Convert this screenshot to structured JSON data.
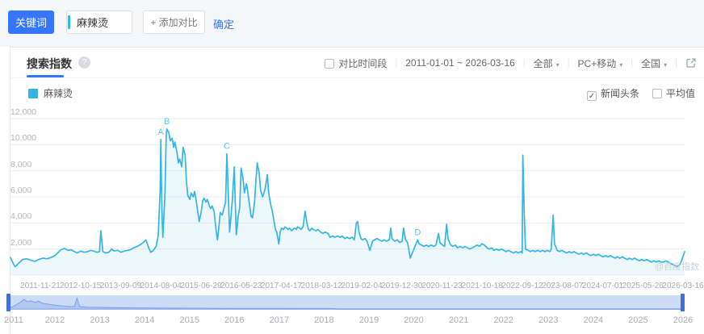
{
  "toolbar": {
    "keyword_label": "关键词",
    "keyword_value": "麻辣烫",
    "add_compare_label": "+ 添加对比",
    "confirm_label": "确定"
  },
  "header": {
    "title": "搜索指数",
    "help_glyph": "?",
    "compare_checkbox_label": "对比时间段",
    "date_range": "2011-01-01 ~ 2026-03-16",
    "filter_all": "全部",
    "filter_device": "PC+移动",
    "filter_region": "全国",
    "caret_glyph": "▾",
    "separator_glyph": "|"
  },
  "legend": {
    "series_label": "麻辣烫",
    "news_checkbox_label": "新闻头条",
    "news_checked_glyph": "✓",
    "avg_checkbox_label": "平均值"
  },
  "watermark": "@百度指数",
  "colors": {
    "accent_blue": "#3476fe",
    "series_cyan": "#35b5e6",
    "marker_cyan": "#5fc6ec",
    "grid": "#ececee",
    "brush_fill": "#ccdcf7",
    "brush_handle": "#3f6fd8",
    "brush_line": "#7d9fe6"
  },
  "chart_data": {
    "type": "line",
    "title": "麻辣烫 搜索指数",
    "series_name": "麻辣烫",
    "x_range": [
      "2011-01-01",
      "2026-03-16"
    ],
    "ylim": [
      0,
      12000
    ],
    "y_ticks": [
      2000,
      4000,
      6000,
      8000,
      10000,
      12000
    ],
    "y_tick_labels": [
      "2,000",
      "4,000",
      "6,000",
      "8,000",
      "10,000",
      "12,000"
    ],
    "x_tick_labels": [
      "2011-11-21",
      "2012-10-15",
      "2013-09-09",
      "2014-08-04",
      "2015-06-29",
      "2016-05-23",
      "2017-04-17",
      "2018-03-12",
      "2019-02-04",
      "2019-12-30",
      "2020-11-23",
      "2021-10-18",
      "2022-09-12",
      "2023-08-07",
      "2024-07-01",
      "2025-05-26",
      "2026-03-16"
    ],
    "legend_position": "top-left",
    "grid": true,
    "markers": [
      {
        "label": "A",
        "t": 0.223,
        "value": 10400
      },
      {
        "label": "B",
        "t": 0.232,
        "value": 11200
      },
      {
        "label": "C",
        "t": 0.321,
        "value": 9300
      },
      {
        "label": "D",
        "t": 0.604,
        "value": 2700
      }
    ],
    "points": [
      [
        0,
        1350
      ],
      [
        0.004,
        900
      ],
      [
        0.007,
        650
      ],
      [
        0.012,
        900
      ],
      [
        0.018,
        1200
      ],
      [
        0.024,
        1250
      ],
      [
        0.03,
        1150
      ],
      [
        0.036,
        1050
      ],
      [
        0.042,
        1200
      ],
      [
        0.048,
        1300
      ],
      [
        0.054,
        1250
      ],
      [
        0.06,
        1350
      ],
      [
        0.066,
        1500
      ],
      [
        0.072,
        1800
      ],
      [
        0.075,
        1950
      ],
      [
        0.08,
        2050
      ],
      [
        0.085,
        1900
      ],
      [
        0.09,
        1950
      ],
      [
        0.095,
        1800
      ],
      [
        0.099,
        1700
      ],
      [
        0.104,
        1850
      ],
      [
        0.109,
        1750
      ],
      [
        0.114,
        1800
      ],
      [
        0.119,
        1900
      ],
      [
        0.123,
        1850
      ],
      [
        0.128,
        1750
      ],
      [
        0.132,
        1800
      ],
      [
        0.134,
        3400
      ],
      [
        0.137,
        1800
      ],
      [
        0.141,
        1700
      ],
      [
        0.146,
        1750
      ],
      [
        0.15,
        2000
      ],
      [
        0.154,
        1850
      ],
      [
        0.159,
        1900
      ],
      [
        0.164,
        1750
      ],
      [
        0.169,
        1850
      ],
      [
        0.174,
        1900
      ],
      [
        0.178,
        1950
      ],
      [
        0.183,
        2100
      ],
      [
        0.188,
        2200
      ],
      [
        0.193,
        2350
      ],
      [
        0.198,
        2550
      ],
      [
        0.201,
        2700
      ],
      [
        0.205,
        2100
      ],
      [
        0.208,
        1750
      ],
      [
        0.212,
        1900
      ],
      [
        0.216,
        2200
      ],
      [
        0.219,
        3000
      ],
      [
        0.222,
        6500
      ],
      [
        0.223,
        10400
      ],
      [
        0.224,
        7000
      ],
      [
        0.225,
        4200
      ],
      [
        0.226,
        2900
      ],
      [
        0.229,
        6000
      ],
      [
        0.231,
        10800
      ],
      [
        0.232,
        11200
      ],
      [
        0.235,
        10900
      ],
      [
        0.237,
        10300
      ],
      [
        0.24,
        10500
      ],
      [
        0.242,
        9800
      ],
      [
        0.244,
        10200
      ],
      [
        0.247,
        9400
      ],
      [
        0.249,
        8600
      ],
      [
        0.251,
        8900
      ],
      [
        0.254,
        8300
      ],
      [
        0.256,
        9800
      ],
      [
        0.259,
        9200
      ],
      [
        0.261,
        7200
      ],
      [
        0.263,
        6100
      ],
      [
        0.266,
        5800
      ],
      [
        0.268,
        6300
      ],
      [
        0.271,
        6000
      ],
      [
        0.273,
        6400
      ],
      [
        0.275,
        5900
      ],
      [
        0.278,
        4800
      ],
      [
        0.28,
        4100
      ],
      [
        0.283,
        4900
      ],
      [
        0.285,
        5700
      ],
      [
        0.287,
        5900
      ],
      [
        0.29,
        5600
      ],
      [
        0.292,
        5800
      ],
      [
        0.295,
        5300
      ],
      [
        0.297,
        5100
      ],
      [
        0.299,
        5300
      ],
      [
        0.302,
        4900
      ],
      [
        0.304,
        3900
      ],
      [
        0.307,
        2700
      ],
      [
        0.309,
        3600
      ],
      [
        0.311,
        4800
      ],
      [
        0.314,
        4600
      ],
      [
        0.316,
        5000
      ],
      [
        0.319,
        5600
      ],
      [
        0.321,
        9300
      ],
      [
        0.322,
        7800
      ],
      [
        0.325,
        3300
      ],
      [
        0.327,
        4400
      ],
      [
        0.329,
        5700
      ],
      [
        0.332,
        8300
      ],
      [
        0.333,
        6200
      ],
      [
        0.335,
        3100
      ],
      [
        0.338,
        4600
      ],
      [
        0.34,
        5200
      ],
      [
        0.342,
        8200
      ],
      [
        0.345,
        7400
      ],
      [
        0.347,
        6300
      ],
      [
        0.35,
        7000
      ],
      [
        0.352,
        6400
      ],
      [
        0.354,
        5600
      ],
      [
        0.357,
        4500
      ],
      [
        0.359,
        4400
      ],
      [
        0.362,
        5600
      ],
      [
        0.364,
        7200
      ],
      [
        0.366,
        8600
      ],
      [
        0.369,
        7800
      ],
      [
        0.371,
        6500
      ],
      [
        0.374,
        6000
      ],
      [
        0.376,
        6300
      ],
      [
        0.378,
        6700
      ],
      [
        0.381,
        7700
      ],
      [
        0.383,
        6300
      ],
      [
        0.386,
        5400
      ],
      [
        0.388,
        5000
      ],
      [
        0.39,
        4400
      ],
      [
        0.393,
        3500
      ],
      [
        0.395,
        3300
      ],
      [
        0.398,
        2400
      ],
      [
        0.4,
        3300
      ],
      [
        0.402,
        3600
      ],
      [
        0.405,
        3500
      ],
      [
        0.407,
        3700
      ],
      [
        0.41,
        3600
      ],
      [
        0.412,
        3500
      ],
      [
        0.414,
        3600
      ],
      [
        0.417,
        3400
      ],
      [
        0.419,
        3500
      ],
      [
        0.422,
        3600
      ],
      [
        0.424,
        3500
      ],
      [
        0.426,
        3700
      ],
      [
        0.429,
        3600
      ],
      [
        0.431,
        3500
      ],
      [
        0.434,
        3700
      ],
      [
        0.437,
        4900
      ],
      [
        0.44,
        3900
      ],
      [
        0.442,
        3500
      ],
      [
        0.444,
        3400
      ],
      [
        0.447,
        3600
      ],
      [
        0.449,
        3500
      ],
      [
        0.453,
        3400
      ],
      [
        0.456,
        3500
      ],
      [
        0.46,
        3300
      ],
      [
        0.463,
        3200
      ],
      [
        0.467,
        3300
      ],
      [
        0.471,
        3200
      ],
      [
        0.474,
        2900
      ],
      [
        0.478,
        3000
      ],
      [
        0.481,
        2900
      ],
      [
        0.485,
        3000
      ],
      [
        0.489,
        2900
      ],
      [
        0.492,
        3000
      ],
      [
        0.496,
        2800
      ],
      [
        0.499,
        2900
      ],
      [
        0.503,
        2800
      ],
      [
        0.507,
        2900
      ],
      [
        0.51,
        2700
      ],
      [
        0.513,
        4000
      ],
      [
        0.515,
        4100
      ],
      [
        0.517,
        3300
      ],
      [
        0.52,
        2800
      ],
      [
        0.522,
        2700
      ],
      [
        0.526,
        2800
      ],
      [
        0.529,
        2600
      ],
      [
        0.533,
        1900
      ],
      [
        0.537,
        2600
      ],
      [
        0.54,
        2700
      ],
      [
        0.544,
        2800
      ],
      [
        0.547,
        2700
      ],
      [
        0.551,
        2600
      ],
      [
        0.554,
        2700
      ],
      [
        0.558,
        2600
      ],
      [
        0.562,
        2700
      ],
      [
        0.564,
        3600
      ],
      [
        0.566,
        2800
      ],
      [
        0.57,
        2600
      ],
      [
        0.574,
        2700
      ],
      [
        0.577,
        2500
      ],
      [
        0.581,
        2600
      ],
      [
        0.583,
        3600
      ],
      [
        0.586,
        2700
      ],
      [
        0.589,
        2500
      ],
      [
        0.593,
        1300
      ],
      [
        0.596,
        1700
      ],
      [
        0.6,
        2200
      ],
      [
        0.604,
        2700
      ],
      [
        0.606,
        2400
      ],
      [
        0.61,
        2300
      ],
      [
        0.613,
        2200
      ],
      [
        0.617,
        2300
      ],
      [
        0.62,
        2200
      ],
      [
        0.624,
        2300
      ],
      [
        0.628,
        2200
      ],
      [
        0.631,
        2300
      ],
      [
        0.635,
        3200
      ],
      [
        0.637,
        2500
      ],
      [
        0.641,
        2300
      ],
      [
        0.644,
        2200
      ],
      [
        0.647,
        3900
      ],
      [
        0.649,
        2800
      ],
      [
        0.653,
        2300
      ],
      [
        0.656,
        2200
      ],
      [
        0.66,
        2300
      ],
      [
        0.663,
        2100
      ],
      [
        0.667,
        2200
      ],
      [
        0.671,
        2100
      ],
      [
        0.674,
        2200
      ],
      [
        0.678,
        2100
      ],
      [
        0.681,
        2000
      ],
      [
        0.685,
        2100
      ],
      [
        0.689,
        2200
      ],
      [
        0.692,
        2300
      ],
      [
        0.696,
        2200
      ],
      [
        0.699,
        2400
      ],
      [
        0.703,
        2300
      ],
      [
        0.707,
        2100
      ],
      [
        0.71,
        2000
      ],
      [
        0.714,
        2100
      ],
      [
        0.717,
        1900
      ],
      [
        0.721,
        2000
      ],
      [
        0.725,
        1900
      ],
      [
        0.728,
        2000
      ],
      [
        0.732,
        1900
      ],
      [
        0.735,
        1800
      ],
      [
        0.739,
        1900
      ],
      [
        0.742,
        1800
      ],
      [
        0.746,
        1700
      ],
      [
        0.75,
        1800
      ],
      [
        0.753,
        1700
      ],
      [
        0.757,
        1800
      ],
      [
        0.759,
        1700
      ],
      [
        0.76,
        9200
      ],
      [
        0.762,
        4800
      ],
      [
        0.764,
        2000
      ],
      [
        0.768,
        1900
      ],
      [
        0.771,
        1800
      ],
      [
        0.775,
        1900
      ],
      [
        0.778,
        1800
      ],
      [
        0.782,
        1900
      ],
      [
        0.786,
        1800
      ],
      [
        0.789,
        1900
      ],
      [
        0.793,
        1800
      ],
      [
        0.796,
        1900
      ],
      [
        0.8,
        1800
      ],
      [
        0.802,
        2000
      ],
      [
        0.805,
        4600
      ],
      [
        0.807,
        2400
      ],
      [
        0.811,
        1900
      ],
      [
        0.814,
        1800
      ],
      [
        0.818,
        1900
      ],
      [
        0.821,
        1800
      ],
      [
        0.825,
        1700
      ],
      [
        0.829,
        1800
      ],
      [
        0.832,
        1700
      ],
      [
        0.836,
        1800
      ],
      [
        0.839,
        1700
      ],
      [
        0.843,
        1600
      ],
      [
        0.847,
        1700
      ],
      [
        0.85,
        1600
      ],
      [
        0.854,
        1700
      ],
      [
        0.857,
        1600
      ],
      [
        0.861,
        1500
      ],
      [
        0.865,
        1600
      ],
      [
        0.868,
        1500
      ],
      [
        0.872,
        1600
      ],
      [
        0.875,
        1500
      ],
      [
        0.879,
        1400
      ],
      [
        0.883,
        1500
      ],
      [
        0.886,
        1400
      ],
      [
        0.89,
        1500
      ],
      [
        0.893,
        1400
      ],
      [
        0.897,
        1300
      ],
      [
        0.9,
        1400
      ],
      [
        0.904,
        1300
      ],
      [
        0.908,
        1400
      ],
      [
        0.911,
        1300
      ],
      [
        0.915,
        1200
      ],
      [
        0.918,
        1300
      ],
      [
        0.922,
        1200
      ],
      [
        0.926,
        1300
      ],
      [
        0.929,
        1200
      ],
      [
        0.933,
        1100
      ],
      [
        0.936,
        1200
      ],
      [
        0.94,
        1100
      ],
      [
        0.944,
        1200
      ],
      [
        0.947,
        1100
      ],
      [
        0.951,
        1000
      ],
      [
        0.954,
        1100
      ],
      [
        0.958,
        1000
      ],
      [
        0.962,
        1100
      ],
      [
        0.965,
        1000
      ],
      [
        0.969,
        1000
      ],
      [
        0.972,
        1100
      ],
      [
        0.976,
        1000
      ],
      [
        0.979,
        900
      ],
      [
        0.983,
        800
      ],
      [
        0.987,
        700
      ],
      [
        0.989,
        650
      ],
      [
        0.993,
        800
      ],
      [
        0.996,
        1200
      ],
      [
        1,
        1800
      ]
    ]
  },
  "brush": {
    "years": [
      "2011",
      "2012",
      "2013",
      "2014",
      "2015",
      "2016",
      "2017",
      "2018",
      "2019",
      "2020",
      "2021",
      "2022",
      "2023",
      "2024",
      "2025",
      "2026"
    ],
    "mini_points": [
      [
        0,
        0.12
      ],
      [
        0.008,
        0.18
      ],
      [
        0.02,
        0.5
      ],
      [
        0.026,
        0.72
      ],
      [
        0.031,
        0.55
      ],
      [
        0.036,
        0.62
      ],
      [
        0.042,
        0.5
      ],
      [
        0.047,
        0.6
      ],
      [
        0.053,
        0.45
      ],
      [
        0.06,
        0.4
      ],
      [
        0.07,
        0.33
      ],
      [
        0.08,
        0.28
      ],
      [
        0.09,
        0.24
      ],
      [
        0.1,
        0.22
      ],
      [
        0.104,
        0.8
      ],
      [
        0.108,
        0.22
      ],
      [
        0.12,
        0.18
      ],
      [
        0.15,
        0.15
      ],
      [
        0.2,
        0.13
      ],
      [
        0.3,
        0.1
      ],
      [
        0.48,
        0.09
      ],
      [
        0.49,
        0.05
      ],
      [
        1,
        0.05
      ]
    ]
  }
}
